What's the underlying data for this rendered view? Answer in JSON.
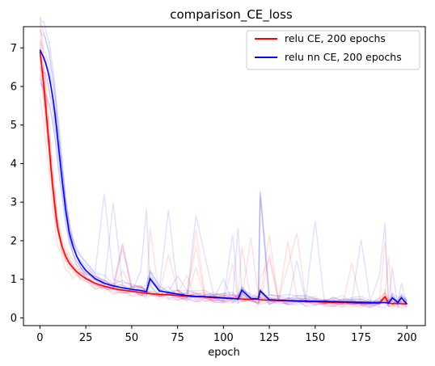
{
  "chart_data": {
    "type": "line",
    "title": "comparison_CE_loss",
    "xlabel": "epoch",
    "ylabel": "",
    "xlim": [
      -9,
      210
    ],
    "ylim": [
      -0.2,
      7.55
    ],
    "xticks": [
      0,
      25,
      50,
      75,
      100,
      125,
      150,
      175,
      200
    ],
    "yticks": [
      0,
      1,
      2,
      3,
      4,
      5,
      6,
      7
    ],
    "grid": false,
    "legend_position": "top-right",
    "x": [
      0,
      1,
      2,
      3,
      4,
      5,
      6,
      7,
      8,
      9,
      10,
      12,
      14,
      16,
      18,
      20,
      22,
      25,
      30,
      35,
      40,
      45,
      50,
      55,
      58,
      60,
      65,
      70,
      75,
      80,
      85,
      90,
      95,
      100,
      105,
      108,
      110,
      115,
      119,
      120,
      125,
      130,
      135,
      140,
      145,
      150,
      155,
      160,
      165,
      170,
      175,
      180,
      185,
      188,
      190,
      192,
      195,
      197,
      200
    ],
    "series": [
      {
        "name": "relu CE, 200 epochs",
        "color": "#ff0000",
        "values": [
          6.9,
          6.5,
          6.05,
          5.55,
          5.0,
          4.45,
          3.9,
          3.4,
          2.95,
          2.55,
          2.25,
          1.85,
          1.6,
          1.42,
          1.3,
          1.2,
          1.12,
          1.02,
          0.9,
          0.82,
          0.76,
          0.72,
          0.69,
          0.66,
          0.64,
          0.63,
          0.61,
          0.6,
          0.58,
          0.56,
          0.55,
          0.54,
          0.52,
          0.51,
          0.5,
          0.5,
          0.49,
          0.48,
          0.48,
          0.47,
          0.46,
          0.45,
          0.44,
          0.43,
          0.42,
          0.42,
          0.41,
          0.4,
          0.4,
          0.39,
          0.38,
          0.38,
          0.38,
          0.55,
          0.38,
          0.37,
          0.38,
          0.37,
          0.36
        ]
      },
      {
        "name": "relu nn CE, 200 epochs",
        "color": "#0000ff",
        "values": [
          6.95,
          6.85,
          6.75,
          6.62,
          6.45,
          6.25,
          6.0,
          5.7,
          5.35,
          4.95,
          4.5,
          3.6,
          2.8,
          2.2,
          1.85,
          1.6,
          1.42,
          1.23,
          1.02,
          0.9,
          0.83,
          0.78,
          0.74,
          0.71,
          0.68,
          1.02,
          0.7,
          0.66,
          0.62,
          0.58,
          0.56,
          0.55,
          0.54,
          0.52,
          0.5,
          0.49,
          0.72,
          0.5,
          0.49,
          0.7,
          0.47,
          0.46,
          0.45,
          0.44,
          0.44,
          0.43,
          0.43,
          0.42,
          0.42,
          0.41,
          0.41,
          0.4,
          0.4,
          0.4,
          0.38,
          0.52,
          0.4,
          0.52,
          0.36
        ]
      }
    ]
  }
}
